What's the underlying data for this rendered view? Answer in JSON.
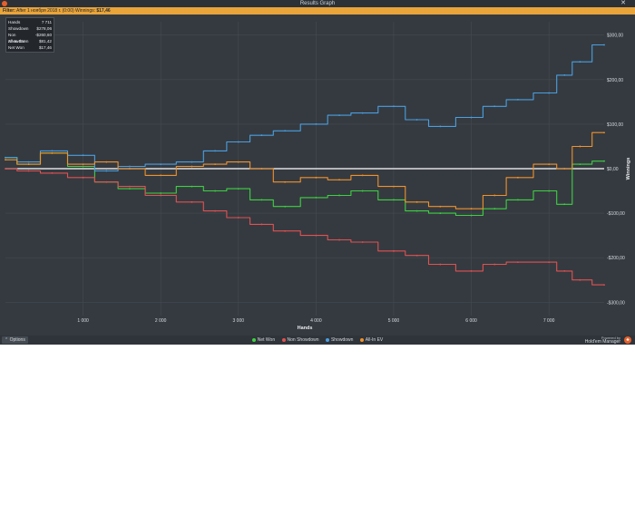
{
  "window": {
    "title": "Results Graph",
    "close_glyph": "✕"
  },
  "filter": {
    "label": "Filter:",
    "text": "After 1 ноября 2018 г. (0:00)",
    "winnings_label": "Winnings:",
    "winnings_value": "$17,46"
  },
  "stats": [
    {
      "label": "Hands",
      "value": "7 711"
    },
    {
      "label": "Showdown",
      "value": "$278,06"
    },
    {
      "label": "Non Showdown",
      "value": "-$260,60"
    },
    {
      "label": "All-In EV",
      "value": "$81,42"
    },
    {
      "label": "Net Won",
      "value": "$17,46"
    }
  ],
  "bottom": {
    "options_label": "Options",
    "options_icon": "chevron-up-icon",
    "brand_top": "Powered by",
    "brand_name": "Hold'em Manager"
  },
  "colors": {
    "net_won": "#3ed142",
    "non_showdown": "#e05252",
    "showdown": "#4a9fe0",
    "allin_ev": "#f0922c",
    "zero_line": "#ffffff",
    "background": "#353a40",
    "grid": "#454b52"
  },
  "chart_data": {
    "type": "line",
    "xlabel": "Hands",
    "ylabel": "Winnings",
    "xlim": [
      0,
      7711
    ],
    "ylim": [
      -330,
      330
    ],
    "x_ticks": [
      1000,
      2000,
      3000,
      4000,
      5000,
      6000,
      7000
    ],
    "x_tick_labels": [
      "1 000",
      "2 000",
      "3 000",
      "4 000",
      "5 000",
      "6 000",
      "7 000"
    ],
    "y_ticks": [
      300,
      200,
      100,
      0,
      -100,
      -200,
      -300
    ],
    "y_tick_labels": [
      "$300,00",
      "$200,00",
      "$100,00",
      "$0,00",
      "-$100,00",
      "-$200,00",
      "-$300,00"
    ],
    "legend_position": "bottom",
    "grid": true,
    "series": [
      {
        "name": "Net Won",
        "color": "#3ed142",
        "x": [
          0,
          300,
          600,
          1000,
          1300,
          1600,
          2000,
          2400,
          2700,
          3000,
          3300,
          3600,
          4000,
          4300,
          4600,
          5000,
          5300,
          5600,
          6000,
          6300,
          6600,
          7000,
          7200,
          7400,
          7711
        ],
        "y": [
          25,
          10,
          35,
          5,
          -30,
          -45,
          -55,
          -40,
          -50,
          -45,
          -70,
          -85,
          -65,
          -60,
          -50,
          -70,
          -95,
          -100,
          -105,
          -90,
          -70,
          -50,
          -80,
          10,
          17
        ]
      },
      {
        "name": "Non Showdown",
        "color": "#e05252",
        "x": [
          0,
          300,
          600,
          1000,
          1300,
          1600,
          2000,
          2400,
          2700,
          3000,
          3300,
          3600,
          4000,
          4300,
          4600,
          5000,
          5300,
          5600,
          6000,
          6300,
          6600,
          7000,
          7200,
          7400,
          7711
        ],
        "y": [
          0,
          -5,
          -10,
          -20,
          -30,
          -40,
          -60,
          -75,
          -95,
          -110,
          -125,
          -140,
          -150,
          -160,
          -165,
          -185,
          -195,
          -215,
          -230,
          -215,
          -210,
          -210,
          -230,
          -250,
          -261
        ]
      },
      {
        "name": "Showdown",
        "color": "#4a9fe0",
        "x": [
          0,
          300,
          600,
          1000,
          1300,
          1600,
          2000,
          2400,
          2700,
          3000,
          3300,
          3600,
          4000,
          4300,
          4600,
          5000,
          5300,
          5600,
          6000,
          6300,
          6600,
          7000,
          7200,
          7400,
          7711
        ],
        "y": [
          25,
          15,
          40,
          30,
          -5,
          5,
          10,
          15,
          40,
          60,
          75,
          85,
          100,
          120,
          125,
          140,
          110,
          95,
          115,
          140,
          155,
          170,
          210,
          240,
          278
        ]
      },
      {
        "name": "All-In EV",
        "color": "#f0922c",
        "x": [
          0,
          300,
          600,
          1000,
          1300,
          1600,
          2000,
          2400,
          2700,
          3000,
          3300,
          3600,
          4000,
          4300,
          4600,
          5000,
          5300,
          5600,
          6000,
          6300,
          6600,
          7000,
          7200,
          7400,
          7711
        ],
        "y": [
          20,
          10,
          35,
          10,
          15,
          0,
          -15,
          5,
          10,
          15,
          0,
          -30,
          -20,
          -25,
          -15,
          -40,
          -75,
          -85,
          -90,
          -60,
          -20,
          10,
          0,
          50,
          81
        ]
      }
    ]
  }
}
